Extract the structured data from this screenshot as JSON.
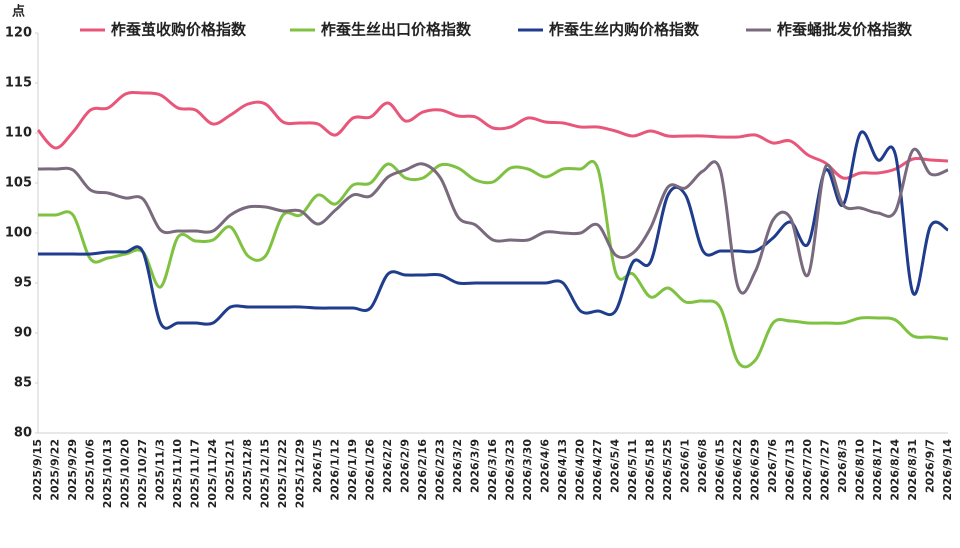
{
  "chart_data": {
    "type": "line",
    "y_label": "点",
    "smooth": true,
    "legend": "top",
    "categories": [
      "2025/9/15",
      "2025/9/22",
      "2025/9/29",
      "2025/10/6",
      "2025/10/13",
      "2025/10/20",
      "2025/10/27",
      "2025/11/3",
      "2025/11/10",
      "2025/11/17",
      "2025/11/24",
      "2025/12/1",
      "2025/12/8",
      "2025/12/15",
      "2025/12/22",
      "2025/12/29",
      "2026/1/5",
      "2026/1/12",
      "2026/1/19",
      "2026/1/26",
      "2026/2/2",
      "2026/2/9",
      "2026/2/16",
      "2026/2/23",
      "2026/3/2",
      "2026/3/9",
      "2026/3/16",
      "2026/3/23",
      "2026/3/30",
      "2026/4/6",
      "2026/4/13",
      "2026/4/20",
      "2026/4/27",
      "2026/5/4",
      "2026/5/11",
      "2026/5/18",
      "2026/5/25",
      "2026/6/1",
      "2026/6/8",
      "2026/6/15",
      "2026/6/22",
      "2026/6/29",
      "2026/7/6",
      "2026/7/13",
      "2026/7/20",
      "2026/7/27",
      "2026/8/3",
      "2026/8/10",
      "2026/8/17",
      "2026/8/24",
      "2026/8/31",
      "2026/9/7",
      "2026/9/14"
    ],
    "series": [
      {
        "name": "柞蚕茧收购价格指数",
        "color": "#e8567a",
        "values": [
          110.3,
          108.5,
          110.1,
          112.3,
          112.5,
          113.9,
          114,
          113.8,
          112.5,
          112.3,
          110.9,
          111.8,
          112.9,
          112.9,
          111.1,
          111,
          110.9,
          109.8,
          111.5,
          111.6,
          113,
          111.2,
          112.1,
          112.3,
          111.7,
          111.6,
          110.5,
          110.6,
          111.5,
          111.1,
          111,
          110.6,
          110.6,
          110.2,
          109.7,
          110.2,
          109.7,
          109.7,
          109.7,
          109.6,
          109.6,
          109.8,
          109,
          109.2,
          107.8,
          107,
          105.5,
          106,
          106,
          106.4,
          107.4,
          107.3,
          107.2
        ]
      },
      {
        "name": "柞蚕生丝出口价格指数",
        "color": "#7fc241",
        "values": [
          101.8,
          101.8,
          101.8,
          97.4,
          97.5,
          97.9,
          98.1,
          94.6,
          99.6,
          99.2,
          99.3,
          100.6,
          97.7,
          97.7,
          101.8,
          101.8,
          103.8,
          102.9,
          104.8,
          105,
          106.9,
          105.5,
          105.5,
          106.8,
          106.5,
          105.3,
          105.1,
          106.5,
          106.4,
          105.6,
          106.4,
          106.4,
          106.4,
          96.1,
          95.9,
          93.6,
          94.5,
          93.1,
          93.2,
          92.5,
          87.1,
          87.3,
          91,
          91.2,
          91,
          91,
          91,
          91.5,
          91.5,
          91.3,
          89.7,
          89.6,
          89.4
        ]
      },
      {
        "name": "柞蚕生丝内购价格指数",
        "color": "#1f3d8c",
        "values": [
          97.9,
          97.9,
          97.9,
          97.9,
          98.1,
          98.1,
          98.1,
          91,
          91,
          91,
          91,
          92.6,
          92.6,
          92.6,
          92.6,
          92.6,
          92.5,
          92.5,
          92.5,
          92.5,
          95.9,
          95.8,
          95.8,
          95.8,
          95,
          95,
          95,
          95,
          95,
          95,
          95,
          92.2,
          92.2,
          92.2,
          97.1,
          97.1,
          103.8,
          103.8,
          98.2,
          98.2,
          98.2,
          98.2,
          99.5,
          101.1,
          98.9,
          106.3,
          102.8,
          110,
          107.3,
          107.8,
          94,
          100.7,
          100.3
        ]
      },
      {
        "name": "柞蚕蛹批发价格指数",
        "color": "#7a6a7e",
        "values": [
          106.4,
          106.4,
          106.3,
          104.3,
          104,
          103.5,
          103.4,
          100.3,
          100.2,
          100.2,
          100.2,
          101.8,
          102.6,
          102.6,
          102.2,
          102.2,
          100.9,
          102.3,
          103.8,
          103.7,
          105.6,
          106.3,
          106.9,
          105.5,
          101.6,
          100.8,
          99.3,
          99.3,
          99.3,
          100.1,
          100,
          100,
          100.8,
          97.8,
          98,
          100.5,
          104.6,
          104.5,
          106.2,
          106.2,
          94.6,
          96.2,
          101.3,
          101.5,
          95.8,
          106.6,
          102.8,
          102.5,
          102,
          102.2,
          108.3,
          105.9,
          106.3
        ]
      }
    ],
    "ylim": [
      80,
      120
    ],
    "yticks": [
      80,
      85,
      90,
      95,
      100,
      105,
      110,
      115,
      120
    ]
  }
}
